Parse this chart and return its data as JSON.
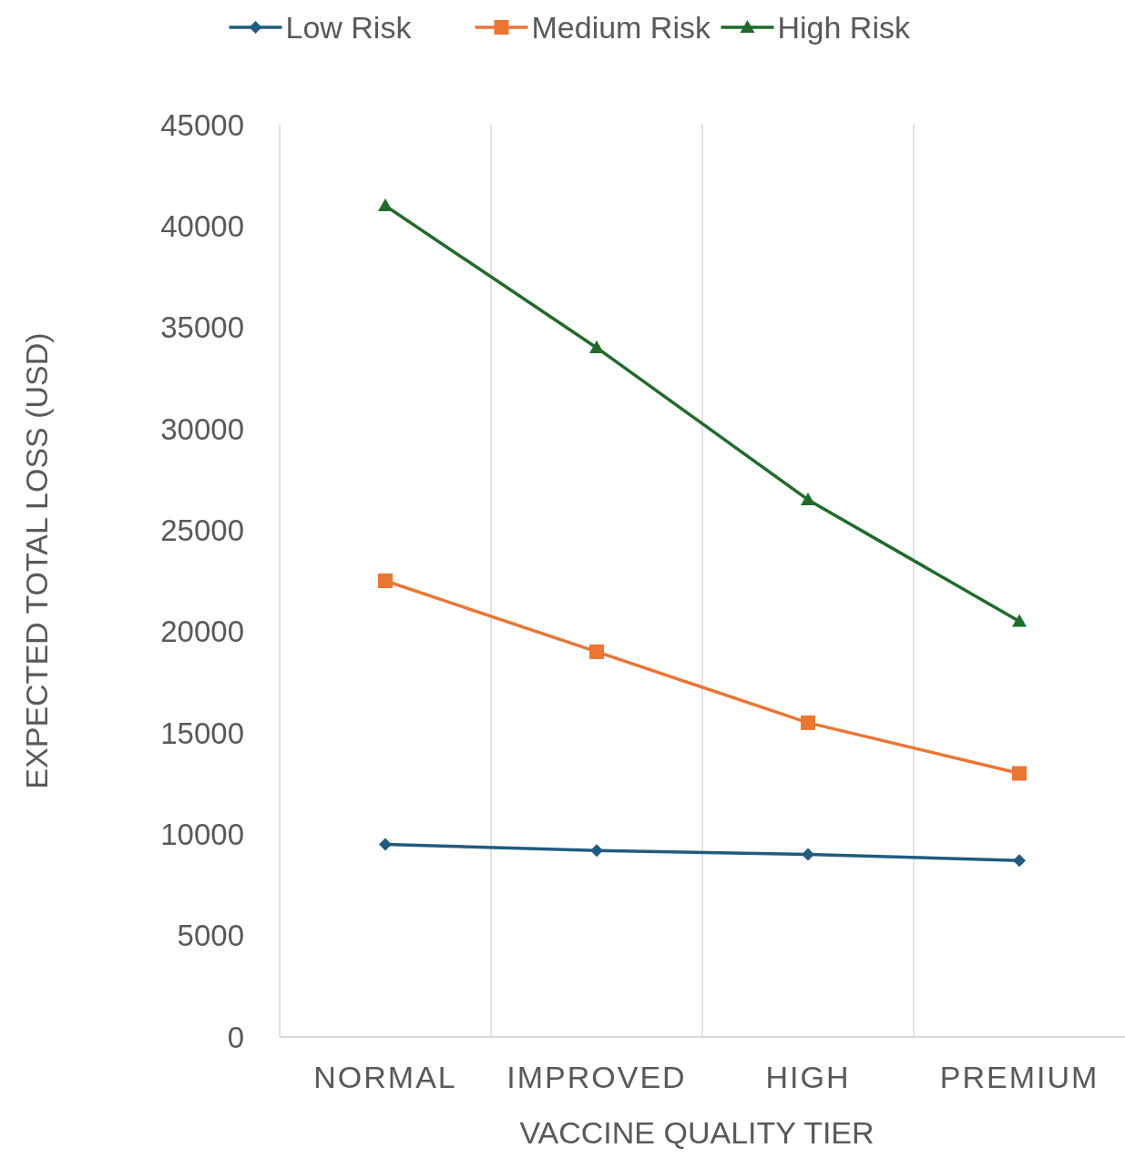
{
  "chart_data": {
    "type": "line",
    "xlabel": "VACCINE QUALITY TIER",
    "ylabel": "EXPECTED TOTAL LOSS (USD)",
    "categories": [
      "NORMAL",
      "IMPROVED",
      "HIGH",
      "PREMIUM"
    ],
    "series": [
      {
        "name": "Low Risk",
        "color": "#1f5c7f",
        "marker": "diamond",
        "values": [
          9500,
          9200,
          9000,
          8700
        ]
      },
      {
        "name": "Medium Risk",
        "color": "#ed7532",
        "marker": "square",
        "values": [
          22500,
          19000,
          15500,
          13000
        ]
      },
      {
        "name": "High Risk",
        "color": "#1f6b2a",
        "marker": "triangle",
        "values": [
          41000,
          34000,
          26500,
          20500
        ]
      }
    ],
    "ylim": [
      0,
      45000
    ],
    "yticks": [
      0,
      5000,
      10000,
      15000,
      20000,
      25000,
      30000,
      35000,
      40000,
      45000
    ],
    "grid": "x",
    "legend": "top",
    "line_style": "solid"
  }
}
